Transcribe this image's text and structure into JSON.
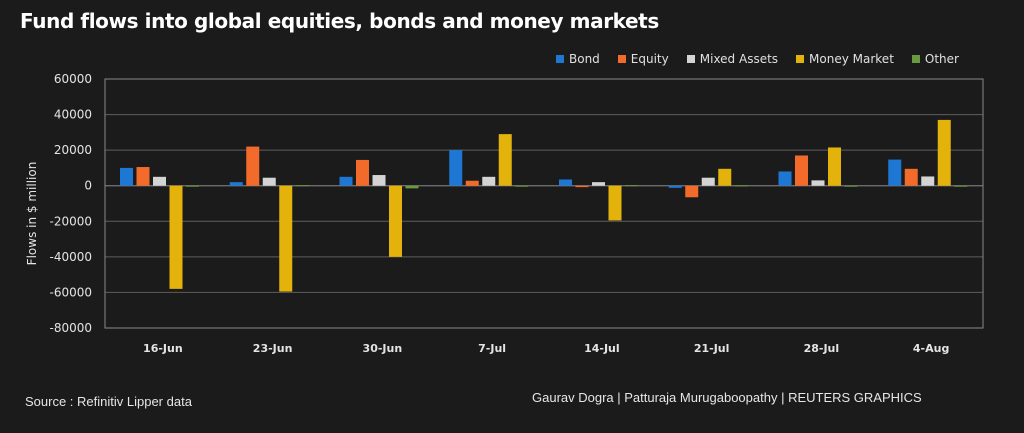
{
  "chart_data": {
    "type": "bar",
    "title": "Fund flows into global equities, bonds and money markets",
    "xlabel": "",
    "ylabel": "Flows in $ million",
    "ylim": [
      -80000,
      60000
    ],
    "yticks": [
      60000,
      40000,
      20000,
      0,
      -20000,
      -40000,
      -60000,
      -80000
    ],
    "ytick_labels": [
      "60000",
      "40000",
      "20000",
      "0",
      "-20000",
      "-40000",
      "-60000",
      "-80000"
    ],
    "grid": true,
    "legend_position": "top-right",
    "categories": [
      "16-Jun",
      "23-Jun",
      "30-Jun",
      "7-Jul",
      "14-Jul",
      "21-Jul",
      "28-Jul",
      "4-Aug"
    ],
    "series": [
      {
        "name": "Bond",
        "color": "#1f77d4",
        "values": [
          10000,
          2000,
          5000,
          20000,
          3500,
          -1200,
          8000,
          14700
        ]
      },
      {
        "name": "Equity",
        "color": "#f26b2a",
        "values": [
          10500,
          22000,
          14500,
          2800,
          -800,
          -6500,
          17000,
          9500
        ]
      },
      {
        "name": "Mixed Assets",
        "color": "#d4d4d4",
        "values": [
          5000,
          4500,
          6000,
          5000,
          2000,
          4500,
          3000,
          5200
        ]
      },
      {
        "name": "Money Market",
        "color": "#e3b30b",
        "values": [
          -58000,
          -59500,
          -40000,
          29000,
          -19500,
          9500,
          21500,
          37000
        ]
      },
      {
        "name": "Other",
        "color": "#6a9a3f",
        "values": [
          0,
          300,
          -1500,
          0,
          300,
          200,
          0,
          -200
        ]
      }
    ]
  },
  "footer": {
    "source": "Source : Refinitiv Lipper data",
    "credit": "Gaurav Dogra | Patturaja Murugaboopathy | REUTERS GRAPHICS"
  }
}
